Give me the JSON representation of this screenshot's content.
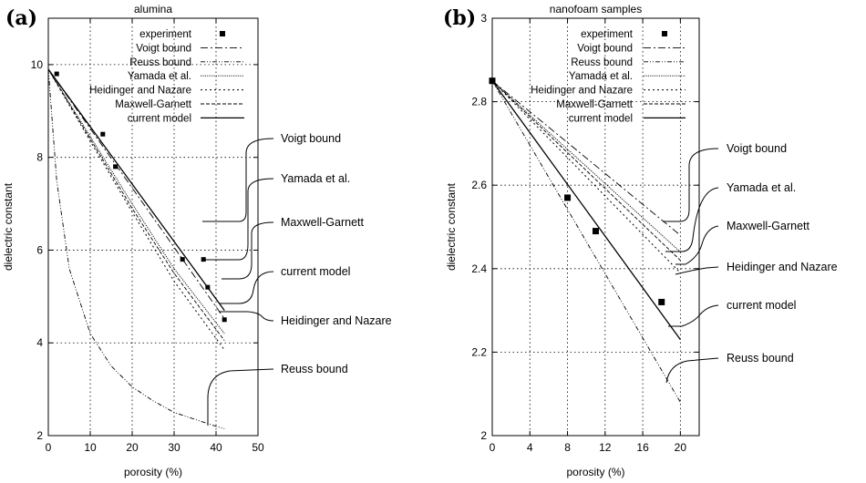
{
  "chart_data": [
    {
      "type": "line",
      "panel": "(a)",
      "title": "alumina",
      "xlabel": "porosity (%)",
      "ylabel": "dielectric constant",
      "xlim": [
        0,
        50
      ],
      "ylim": [
        2,
        11
      ],
      "xticks": [
        "0",
        "10",
        "20",
        "30",
        "40",
        "50"
      ],
      "yticks": [
        "2",
        "4",
        "6",
        "8",
        "10"
      ],
      "grid": true,
      "legend_position": "top-right",
      "legend": [
        "experiment",
        "Voigt bound",
        "Reuss bound",
        "Yamada et al.",
        "Heidinger and Nazare",
        "Maxwell-Garnett",
        "current model"
      ],
      "series": [
        {
          "name": "experiment",
          "x": [
            2,
            13,
            16,
            32,
            37,
            38,
            42
          ],
          "y": [
            9.8,
            8.5,
            7.8,
            5.8,
            5.8,
            5.2,
            4.5
          ]
        },
        {
          "name": "Voigt bound",
          "x": [
            0,
            10,
            20,
            30,
            42
          ],
          "y": [
            9.9,
            8.62,
            7.34,
            6.06,
            4.52
          ]
        },
        {
          "name": "Reuss bound",
          "x": [
            0,
            2,
            5,
            10,
            15,
            20,
            25,
            30,
            35,
            40,
            42
          ],
          "y": [
            9.9,
            7.5,
            5.6,
            4.2,
            3.5,
            3.05,
            2.75,
            2.5,
            2.35,
            2.2,
            2.15
          ]
        },
        {
          "name": "Yamada et al.",
          "x": [
            0,
            10,
            20,
            30,
            42
          ],
          "y": [
            9.9,
            8.45,
            7.0,
            5.6,
            4.2
          ]
        },
        {
          "name": "Heidinger and Nazare",
          "x": [
            0,
            10,
            20,
            30,
            42
          ],
          "y": [
            9.9,
            8.35,
            6.82,
            5.33,
            3.85
          ]
        },
        {
          "name": "Maxwell-Garnett",
          "x": [
            0,
            10,
            20,
            30,
            42
          ],
          "y": [
            9.9,
            8.4,
            6.9,
            5.5,
            4.05
          ]
        },
        {
          "name": "current model",
          "x": [
            0,
            42
          ],
          "y": [
            9.9,
            4.7
          ]
        }
      ],
      "annotations": [
        "Voigt bound",
        "Yamada et al.",
        "Maxwell-Garnett",
        "current model",
        "Heidinger and Nazare",
        "Reuss bound"
      ]
    },
    {
      "type": "line",
      "panel": "(b)",
      "title": "nanofoam samples",
      "xlabel": "porosity (%)",
      "ylabel": "dielectric constant",
      "xlim": [
        0,
        22
      ],
      "ylim": [
        2,
        3
      ],
      "xticks": [
        "0",
        "4",
        "8",
        "12",
        "16",
        "20"
      ],
      "yticks": [
        "2",
        "2.2",
        "2.4",
        "2.6",
        "2.8",
        "3"
      ],
      "grid": true,
      "legend_position": "top-right",
      "legend": [
        "experiment",
        "Voigt bound",
        "Reuss bound",
        "Yamada et al.",
        "Heidinger and Nazare",
        "Maxwell-Garnett",
        "current model"
      ],
      "series": [
        {
          "name": "experiment",
          "x": [
            0,
            8,
            11,
            18
          ],
          "y": [
            2.85,
            2.57,
            2.49,
            2.32
          ]
        },
        {
          "name": "Voigt bound",
          "x": [
            0,
            20
          ],
          "y": [
            2.85,
            2.48
          ]
        },
        {
          "name": "Reuss bound",
          "x": [
            0,
            20
          ],
          "y": [
            2.85,
            2.08
          ]
        },
        {
          "name": "Yamada et al.",
          "x": [
            0,
            20
          ],
          "y": [
            2.85,
            2.44
          ]
        },
        {
          "name": "Heidinger and Nazare",
          "x": [
            0,
            20
          ],
          "y": [
            2.85,
            2.39
          ]
        },
        {
          "name": "Maxwell-Garnett",
          "x": [
            0,
            20
          ],
          "y": [
            2.85,
            2.42
          ]
        },
        {
          "name": "current model",
          "x": [
            0,
            20
          ],
          "y": [
            2.85,
            2.23
          ]
        }
      ],
      "annotations": [
        "Voigt bound",
        "Yamada et al.",
        "Maxwell-Garnett",
        "Heidinger and Nazare",
        "current model",
        "Reuss bound"
      ]
    }
  ]
}
